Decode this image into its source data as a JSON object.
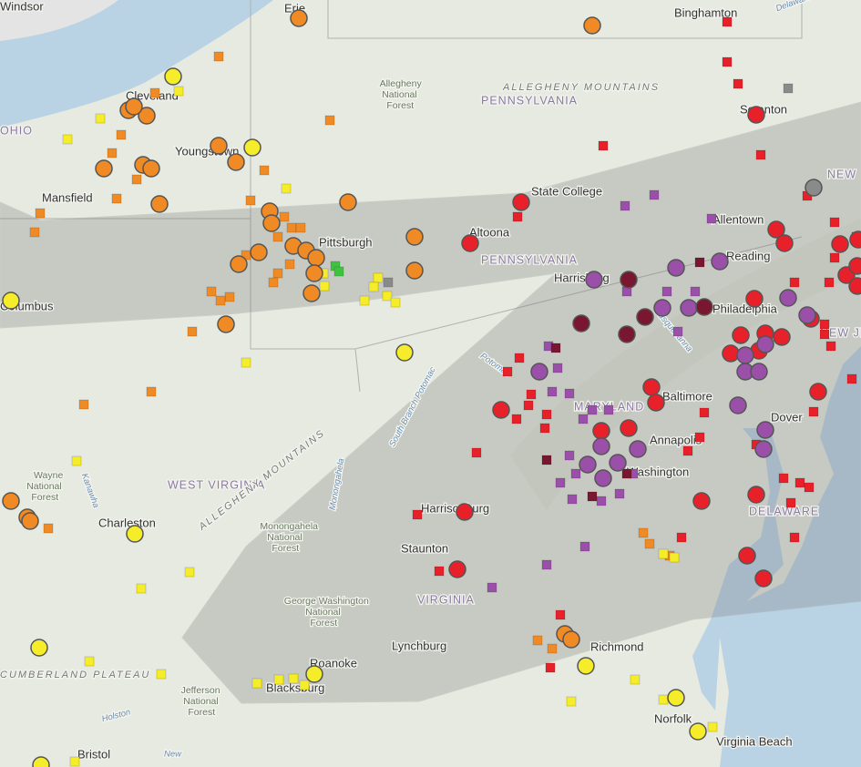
{
  "map": {
    "cities": [
      "Windsor",
      "Erie",
      "Binghamton",
      "Cleveland",
      "Youngstown",
      "Mansfield",
      "Scranton",
      "State College",
      "Allentown",
      "Pittsburgh",
      "Altoona",
      "Reading",
      "Harrisburg",
      "Philadelphia",
      "Columbus",
      "Baltimore",
      "Dover",
      "Annapolis",
      "Washington",
      "Charleston",
      "Harrisonburg",
      "Staunton",
      "Lynchburg",
      "Roanoke",
      "Richmond",
      "Blacksburg",
      "Norfolk",
      "Virginia Beach",
      "Bristol"
    ],
    "regions": [
      "PENNSYLVANIA",
      "PENNSYLVANIA",
      "OHIO",
      "MARYLAND",
      "NEW JERSEY",
      "WEST VIRGINIA",
      "DELAWARE",
      "VIRGINIA",
      "NEW"
    ],
    "mountains": [
      "ALLEGHENY MOUNTAINS",
      "ALLEGHENY MOUNTAINS",
      "CUMBERLAND PLATEAU"
    ],
    "forests": [
      "Allegheny National Forest",
      "Wayne National Forest",
      "Monongahela National Forest",
      "George Washington National Forest",
      "Jefferson National Forest"
    ],
    "rivers": [
      "Delaware",
      "Kanawha",
      "Monongahela",
      "South Branch Potomac",
      "Susquehanna",
      "Potomac",
      "Holston",
      "New"
    ]
  }
}
